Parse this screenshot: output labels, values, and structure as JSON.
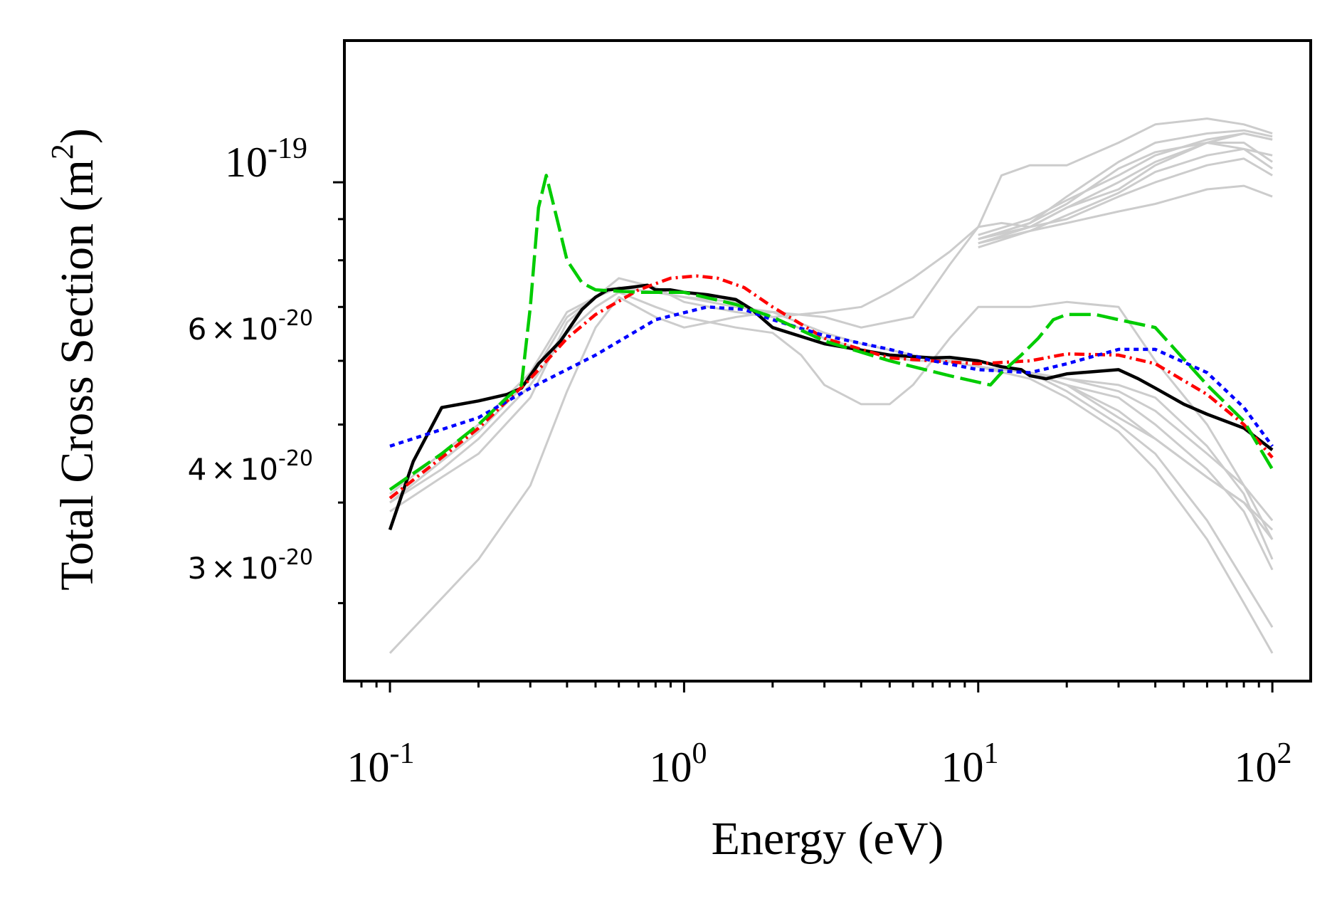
{
  "chart_data": {
    "type": "line",
    "xscale": "log",
    "yscale": "log",
    "xlim": [
      0.07,
      135
    ],
    "ylim": [
      2.4e-20,
      1.5e-19
    ],
    "xlabel": "Energy (eV)",
    "ylabel": "Total Cross Section (m",
    "ylabel_sup": "2",
    "ylabel_close": ")",
    "x_ticks": [
      {
        "value": 0.1,
        "base": "10",
        "exp": "-1"
      },
      {
        "value": 1,
        "base": "10",
        "exp": "0"
      },
      {
        "value": 10,
        "base": "10",
        "exp": "1"
      },
      {
        "value": 100,
        "base": "10",
        "exp": "2"
      }
    ],
    "y_major_tick": {
      "value": 1e-19,
      "base": "10",
      "exp": "-19"
    },
    "y_minor_labels": [
      {
        "value": 6e-20,
        "mant": "6",
        "times": "×",
        "base": "10",
        "exp": "-20"
      },
      {
        "value": 4e-20,
        "mant": "4",
        "times": "×",
        "base": "10",
        "exp": "-20"
      },
      {
        "value": 3e-20,
        "mant": "3",
        "times": "×",
        "base": "10",
        "exp": "-20"
      }
    ],
    "y_minor_ticks": [
      3e-20,
      4e-20,
      5e-20,
      6e-20,
      7e-20,
      8e-20,
      9e-20
    ],
    "background_series_color": "#cccccc",
    "background_series": [
      {
        "name": "gray-1",
        "x": [
          0.1,
          0.15,
          0.2,
          0.3,
          0.4,
          0.5,
          0.6,
          0.8,
          1,
          1.5,
          2,
          3,
          4,
          6,
          10,
          15,
          20,
          30,
          40,
          60,
          80,
          100
        ],
        "y": [
          3.9e-20,
          4.3e-20,
          4.6e-20,
          5.4e-20,
          6.7e-20,
          7.2e-20,
          7.6e-20,
          7.4e-20,
          7.1e-20,
          6.9e-20,
          6.8e-20,
          6.4e-20,
          6.2e-20,
          6e-20,
          6e-20,
          5.8e-20,
          5.6e-20,
          5.2e-20,
          4.8e-20,
          4.3e-20,
          4e-20,
          3.7e-20
        ]
      },
      {
        "name": "gray-2",
        "x": [
          0.1,
          0.2,
          0.3,
          0.4,
          0.5,
          0.6,
          0.8,
          1,
          1.5,
          2,
          3,
          4,
          6,
          10,
          15,
          20,
          30,
          40,
          60,
          80,
          100
        ],
        "y": [
          2.6e-20,
          3.4e-20,
          4.2e-20,
          5.5e-20,
          6.6e-20,
          7.2e-20,
          6.8e-20,
          6.6e-20,
          6.8e-20,
          6.9e-20,
          6.5e-20,
          6.3e-20,
          6.1e-20,
          5.9e-20,
          5.7e-20,
          5.4e-20,
          4.9e-20,
          4.4e-20,
          3.6e-20,
          3e-20,
          2.6e-20
        ]
      },
      {
        "name": "gray-3",
        "x": [
          0.1,
          0.15,
          0.2,
          0.3,
          0.4,
          0.5,
          0.6,
          0.8,
          1,
          1.5,
          2,
          2.5,
          3,
          4,
          5,
          6,
          8,
          10,
          12,
          15,
          20,
          30,
          40,
          60,
          80,
          100
        ],
        "y": [
          4e-20,
          4.4e-20,
          4.8e-20,
          5.6e-20,
          6.5e-20,
          7e-20,
          7.3e-20,
          7e-20,
          6.8e-20,
          6.6e-20,
          6.5e-20,
          6.1e-20,
          5.6e-20,
          5.3e-20,
          5.3e-20,
          5.6e-20,
          6.4e-20,
          7e-20,
          7e-20,
          7e-20,
          7.1e-20,
          7e-20,
          6e-20,
          5e-20,
          4.2e-20,
          3.6e-20
        ]
      },
      {
        "name": "gray-4",
        "x": [
          0.1,
          0.2,
          0.3,
          0.4,
          0.5,
          0.6,
          0.8,
          1,
          1.5,
          2,
          3,
          4,
          5,
          6,
          8,
          10,
          12,
          15,
          20,
          30,
          40,
          60,
          80,
          100
        ],
        "y": [
          4e-20,
          4.9e-20,
          5.7e-20,
          6.8e-20,
          7.2e-20,
          7.4e-20,
          7.3e-20,
          7.2e-20,
          7.1e-20,
          6.8e-20,
          6.9e-20,
          7e-20,
          7.3e-20,
          7.6e-20,
          8.2e-20,
          8.8e-20,
          8.9e-20,
          8.8e-20,
          9.3e-20,
          9.8e-20,
          1.05e-19,
          1.12e-19,
          1.15e-19,
          1.13e-19
        ]
      },
      {
        "name": "gray-5",
        "x": [
          0.1,
          0.2,
          0.3,
          0.4,
          0.5,
          0.6,
          0.8,
          1,
          1.5,
          2,
          3,
          4,
          6,
          8,
          10,
          12,
          15,
          20,
          30,
          40,
          60,
          80,
          100
        ],
        "y": [
          4.1e-20,
          5e-20,
          5.8e-20,
          6.9e-20,
          7.2e-20,
          7.4e-20,
          7.3e-20,
          7.2e-20,
          7e-20,
          6.9e-20,
          6.8e-20,
          6.6e-20,
          6.8e-20,
          7.9e-20,
          8.8e-20,
          1.02e-19,
          1.05e-19,
          1.05e-19,
          1.12e-19,
          1.18e-19,
          1.2e-19,
          1.18e-19,
          1.15e-19
        ]
      },
      {
        "name": "gray-6",
        "x": [
          10,
          15,
          20,
          30,
          40,
          60,
          80,
          100
        ],
        "y": [
          8.5e-20,
          8.9e-20,
          9.6e-20,
          1.06e-19,
          1.12e-19,
          1.15e-19,
          1.16e-19,
          1.14e-19
        ]
      },
      {
        "name": "gray-7",
        "x": [
          10,
          15,
          20,
          30,
          40,
          60,
          80,
          100
        ],
        "y": [
          8.6e-20,
          9e-20,
          9.5e-20,
          1.02e-19,
          1.08e-19,
          1.13e-19,
          1.15e-19,
          1.13e-19
        ]
      },
      {
        "name": "gray-8",
        "x": [
          10,
          15,
          20,
          30,
          40,
          60,
          80,
          100
        ],
        "y": [
          8.4e-20,
          8.8e-20,
          9e-20,
          9.6e-20,
          1e-19,
          1.05e-19,
          1.07e-19,
          1.02e-19
        ]
      },
      {
        "name": "gray-9",
        "x": [
          10,
          15,
          20,
          30,
          40,
          60,
          80,
          100
        ],
        "y": [
          8.3e-20,
          8.7e-20,
          8.9e-20,
          9.2e-20,
          9.4e-20,
          9.8e-20,
          9.9e-20,
          9.6e-20
        ]
      },
      {
        "name": "gray-10",
        "x": [
          10,
          15,
          20,
          30,
          40,
          60,
          80,
          100
        ],
        "y": [
          8.5e-20,
          8.8e-20,
          9.3e-20,
          1e-19,
          1.06e-19,
          1.12e-19,
          1.12e-19,
          1.06e-19
        ]
      },
      {
        "name": "gray-11",
        "x": [
          10,
          15,
          20,
          30,
          40,
          60,
          80,
          100
        ],
        "y": [
          8.4e-20,
          8.7e-20,
          9.1e-20,
          9.7e-20,
          1.03e-19,
          1.08e-19,
          1.1e-19,
          1.08e-19
        ]
      },
      {
        "name": "gray-12",
        "x": [
          10,
          15,
          20,
          30,
          40,
          60,
          80,
          100
        ],
        "y": [
          8.5e-20,
          8.9e-20,
          9.4e-20,
          1.04e-19,
          1.09e-19,
          1.12e-19,
          1.1e-19,
          1.04e-19
        ]
      },
      {
        "name": "gray-13",
        "x": [
          10,
          15,
          20,
          30,
          40,
          60,
          80,
          100
        ],
        "y": [
          5.9e-20,
          5.8e-20,
          5.7e-20,
          5.6e-20,
          5.4e-20,
          4.7e-20,
          4.1e-20,
          3.4e-20
        ]
      },
      {
        "name": "gray-14",
        "x": [
          10,
          15,
          20,
          30,
          40,
          60,
          80,
          100
        ],
        "y": [
          5.9e-20,
          5.8e-20,
          5.6e-20,
          5.4e-20,
          5e-20,
          4.4e-20,
          3.9e-20,
          3.3e-20
        ]
      },
      {
        "name": "gray-15",
        "x": [
          10,
          15,
          20,
          30,
          40,
          60,
          80,
          100
        ],
        "y": [
          5.9e-20,
          5.8e-20,
          5.7e-20,
          5.5e-20,
          5.2e-20,
          4.6e-20,
          4.2e-20,
          3.8e-20
        ]
      },
      {
        "name": "gray-16",
        "x": [
          10,
          15,
          20,
          30,
          40,
          60,
          80,
          100
        ],
        "y": [
          5.9e-20,
          5.8e-20,
          5.5e-20,
          5e-20,
          4.6e-20,
          3.8e-20,
          3.2e-20,
          2.8e-20
        ]
      },
      {
        "name": "gray-17",
        "x": [
          10,
          15,
          20,
          30,
          40,
          60,
          80,
          100
        ],
        "y": [
          5.9e-20,
          5.8e-20,
          5.6e-20,
          5.1e-20,
          4.8e-20,
          4.3e-20,
          4e-20,
          3.6e-20
        ]
      }
    ],
    "series": [
      {
        "name": "black-solid",
        "color": "#000000",
        "dash": "",
        "x": [
          0.1,
          0.12,
          0.15,
          0.2,
          0.25,
          0.28,
          0.32,
          0.38,
          0.45,
          0.5,
          0.55,
          0.65,
          0.75,
          0.8,
          0.9,
          1.0,
          1.2,
          1.5,
          1.7,
          2,
          3,
          5,
          7,
          8,
          10,
          12,
          14,
          15,
          17,
          20,
          25,
          30,
          35,
          40,
          50,
          60,
          80,
          100
        ],
        "y": [
          3.7e-20,
          4.5e-20,
          5.25e-20,
          5.35e-20,
          5.45e-20,
          5.55e-20,
          5.95e-20,
          6.35e-20,
          6.95e-20,
          7.2e-20,
          7.35e-20,
          7.4e-20,
          7.45e-20,
          7.35e-20,
          7.35e-20,
          7.3e-20,
          7.25e-20,
          7.15e-20,
          6.95e-20,
          6.6e-20,
          6.3e-20,
          6.1e-20,
          6.05e-20,
          6.06e-20,
          6e-20,
          5.9e-20,
          5.85e-20,
          5.75e-20,
          5.7e-20,
          5.78e-20,
          5.82e-20,
          5.85e-20,
          5.7e-20,
          5.55e-20,
          5.3e-20,
          5.15e-20,
          4.95e-20,
          4.65e-20
        ]
      },
      {
        "name": "red-dashdot",
        "color": "#ff0000",
        "dash": "14 6 3 6",
        "x": [
          0.1,
          0.15,
          0.2,
          0.3,
          0.4,
          0.5,
          0.7,
          0.9,
          1.1,
          1.3,
          1.6,
          2,
          3,
          5,
          7,
          10,
          15,
          20,
          30,
          40,
          60,
          80,
          100
        ],
        "y": [
          4.05e-20,
          4.55e-20,
          4.95e-20,
          5.7e-20,
          6.4e-20,
          6.85e-20,
          7.35e-20,
          7.6e-20,
          7.65e-20,
          7.6e-20,
          7.4e-20,
          7e-20,
          6.4e-20,
          6.05e-20,
          6e-20,
          5.95e-20,
          6e-20,
          6.12e-20,
          6.1e-20,
          5.95e-20,
          5.45e-20,
          5e-20,
          4.55e-20
        ]
      },
      {
        "name": "blue-dotted",
        "color": "#0000ff",
        "dash": "7 6",
        "x": [
          0.1,
          0.2,
          0.3,
          0.5,
          0.8,
          1.2,
          1.6,
          2,
          3,
          5,
          7,
          10,
          15,
          20,
          30,
          40,
          60,
          80,
          100
        ],
        "y": [
          4.7e-20,
          5.1e-20,
          5.55e-20,
          6.1e-20,
          6.75e-20,
          7e-20,
          6.95e-20,
          6.75e-20,
          6.45e-20,
          6.2e-20,
          6e-20,
          5.85e-20,
          5.8e-20,
          5.95e-20,
          6.2e-20,
          6.2e-20,
          5.8e-20,
          5.25e-20,
          4.7e-20
        ]
      },
      {
        "name": "green-dashed",
        "color": "#00cc00",
        "dash": "30 9",
        "x": [
          0.1,
          0.15,
          0.2,
          0.25,
          0.28,
          0.3,
          0.32,
          0.34,
          0.37,
          0.4,
          0.45,
          0.5,
          0.7,
          1.0,
          1.5,
          2,
          3,
          5,
          8,
          11,
          12,
          14,
          16,
          18,
          20,
          25,
          30,
          40,
          60,
          80,
          100
        ],
        "y": [
          4.15e-20,
          4.6e-20,
          5e-20,
          5.4e-20,
          5.6e-20,
          7e-20,
          9.3e-20,
          1.02e-19,
          9e-20,
          8e-20,
          7.5e-20,
          7.35e-20,
          7.3e-20,
          7.3e-20,
          7.05e-20,
          6.8e-20,
          6.35e-20,
          6e-20,
          5.75e-20,
          5.6e-20,
          5.8e-20,
          6.1e-20,
          6.4e-20,
          6.75e-20,
          6.85e-20,
          6.85e-20,
          6.75e-20,
          6.6e-20,
          5.6e-20,
          5.05e-20,
          4.4e-20
        ]
      }
    ]
  }
}
